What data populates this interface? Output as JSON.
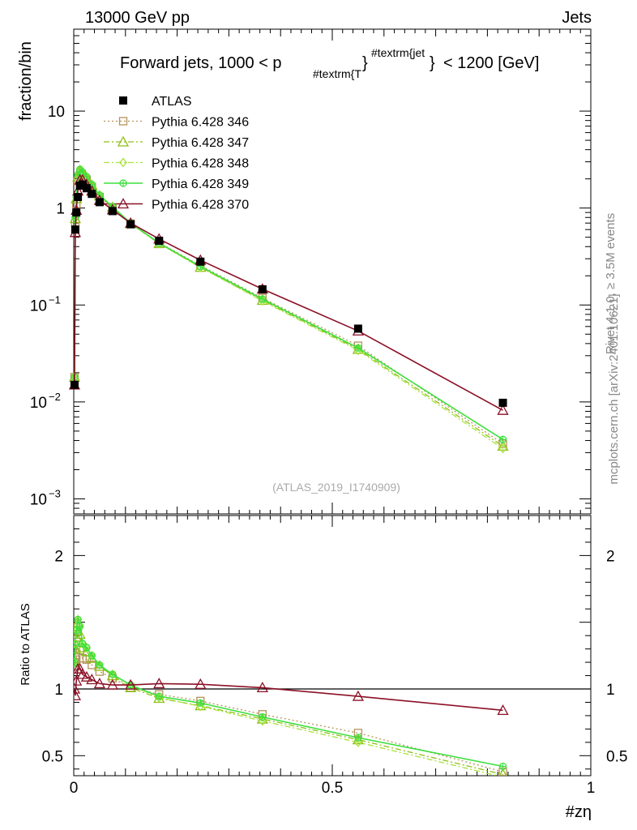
{
  "header": {
    "left": "13000 GeV pp",
    "right": "Jets"
  },
  "side_labels": {
    "rivet": "Rivet 4.1.0, ≥ 3.5M events",
    "mcplots": "mcplots.cern.ch [arXiv:2401.10621]"
  },
  "chart_data": [
    {
      "type": "line",
      "panel": "main",
      "title_main": "Forward jets, 1000 < p",
      "title_sub": "#textrm{T",
      "title_sup": "#textrm{jet",
      "title_tail": "< 1200 [GeV]",
      "watermark": "(ATLAS_2019_I1740909)",
      "ylabel": "fraction/bin",
      "yscale": "log",
      "ylim": [
        0.0007,
        70
      ],
      "xlim": [
        0,
        1
      ],
      "ytick_labels": [
        {
          "value": 10,
          "base": "10",
          "exp": ""
        },
        {
          "value": 1,
          "base": "1",
          "exp": ""
        },
        {
          "value": 0.1,
          "base": "10",
          "exp": "−1"
        },
        {
          "value": 0.01,
          "base": "10",
          "exp": "−2"
        },
        {
          "value": 0.001,
          "base": "10",
          "exp": "−3"
        }
      ],
      "x": [
        0.0015,
        0.003,
        0.005,
        0.008,
        0.012,
        0.017,
        0.025,
        0.035,
        0.05,
        0.075,
        0.11,
        0.165,
        0.245,
        0.365,
        0.55,
        0.83
      ],
      "series": [
        {
          "name": "ATLAS",
          "color": "#000000",
          "marker": "square-filled",
          "line": "none",
          "values": [
            0.015,
            0.6,
            0.9,
            1.3,
            1.7,
            1.75,
            1.6,
            1.4,
            1.15,
            0.93,
            0.68,
            0.46,
            0.28,
            0.145,
            0.057,
            0.0098
          ]
        },
        {
          "name": "Pythia 6.428 346",
          "color": "#b5935b",
          "marker": "square-open",
          "line": "dotted",
          "values": [
            0.018,
            0.7,
            1.1,
            1.9,
            2.2,
            2.15,
            1.95,
            1.65,
            1.3,
            1.0,
            0.69,
            0.44,
            0.255,
            0.118,
            0.038,
            0.0037
          ]
        },
        {
          "name": "Pythia 6.428 347",
          "color": "#8fbf16",
          "marker": "triangle-open",
          "line": "dashdot",
          "values": [
            0.018,
            0.78,
            1.25,
            2.1,
            2.4,
            2.3,
            2.05,
            1.72,
            1.34,
            1.02,
            0.69,
            0.43,
            0.245,
            0.112,
            0.035,
            0.0035
          ]
        },
        {
          "name": "Pythia 6.428 348",
          "color": "#a7e33c",
          "marker": "diamond-open",
          "line": "dashdot",
          "values": [
            0.018,
            0.8,
            1.3,
            2.2,
            2.5,
            2.35,
            2.1,
            1.75,
            1.36,
            1.03,
            0.7,
            0.43,
            0.244,
            0.11,
            0.034,
            0.0033
          ]
        },
        {
          "name": "Pythia 6.428 349",
          "color": "#3de03d",
          "marker": "circle-cross",
          "line": "solid",
          "values": [
            0.018,
            0.8,
            1.3,
            2.2,
            2.5,
            2.35,
            2.1,
            1.75,
            1.36,
            1.03,
            0.7,
            0.435,
            0.25,
            0.115,
            0.036,
            0.0041
          ]
        },
        {
          "name": "Pythia 6.428 370",
          "color": "#8b1026",
          "marker": "triangle-open",
          "line": "solid",
          "values": [
            0.015,
            0.56,
            0.95,
            1.5,
            1.95,
            1.95,
            1.75,
            1.5,
            1.2,
            0.96,
            0.7,
            0.48,
            0.29,
            0.146,
            0.054,
            0.0082
          ]
        }
      ]
    },
    {
      "type": "line",
      "panel": "ratio",
      "ylabel": "Ratio to ATLAS",
      "xlabel": "#zη",
      "ylim": [
        0.35,
        2.3
      ],
      "xlim": [
        0,
        1
      ],
      "ytick_labels": [
        {
          "value": 2,
          "label": "2"
        },
        {
          "value": 1,
          "label": "1"
        },
        {
          "value": 0.5,
          "label": "0.5"
        }
      ],
      "xtick_labels": [
        {
          "value": 0,
          "label": "0"
        },
        {
          "value": 0.5,
          "label": "0.5"
        },
        {
          "value": 1,
          "label": "1"
        }
      ],
      "reference": 1,
      "x": [
        0.0015,
        0.003,
        0.005,
        0.008,
        0.012,
        0.017,
        0.025,
        0.035,
        0.05,
        0.075,
        0.11,
        0.165,
        0.245,
        0.365,
        0.55,
        0.83
      ],
      "series": [
        {
          "name": "Pythia 6.428 346",
          "values": [
            1.2,
            1.17,
            1.22,
            1.46,
            1.29,
            1.23,
            1.22,
            1.18,
            1.13,
            1.08,
            1.01,
            0.96,
            0.91,
            0.81,
            0.67,
            0.38
          ]
        },
        {
          "name": "Pythia 6.428 347",
          "values": [
            1.2,
            1.3,
            1.39,
            1.5,
            1.41,
            1.31,
            1.28,
            1.23,
            1.17,
            1.1,
            1.01,
            0.93,
            0.875,
            0.775,
            0.62,
            0.36
          ]
        },
        {
          "name": "Pythia 6.428 348",
          "values": [
            1.2,
            1.33,
            1.44,
            1.52,
            1.47,
            1.34,
            1.31,
            1.25,
            1.18,
            1.11,
            1.03,
            0.935,
            0.87,
            0.76,
            0.6,
            0.34
          ]
        },
        {
          "name": "Pythia 6.428 349",
          "values": [
            1.2,
            1.33,
            1.44,
            1.52,
            1.47,
            1.34,
            1.31,
            1.25,
            1.18,
            1.11,
            1.03,
            0.945,
            0.895,
            0.79,
            0.635,
            0.42
          ]
        },
        {
          "name": "Pythia 6.428 370",
          "values": [
            1.0,
            0.95,
            1.06,
            1.15,
            1.15,
            1.11,
            1.09,
            1.07,
            1.04,
            1.03,
            1.03,
            1.04,
            1.035,
            1.01,
            0.945,
            0.84
          ]
        }
      ]
    }
  ]
}
